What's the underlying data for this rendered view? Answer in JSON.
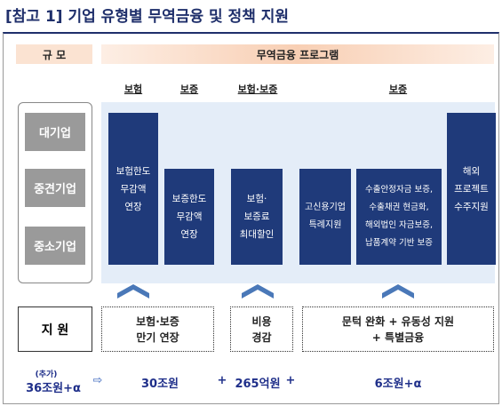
{
  "title": "[참고 1] 기업 유형별 무역금융 및 정책 지원",
  "header": {
    "scale": "규 모",
    "programs": "무역금융 프로그램"
  },
  "categories": [
    "보험",
    "보증",
    "보험·보증",
    "보증"
  ],
  "company_sizes": [
    "대기업",
    "중견기업",
    "중소기업"
  ],
  "programs": [
    {
      "lines": [
        "보험한도",
        "무감액",
        "연장"
      ]
    },
    {
      "lines": [
        "보증한도",
        "무감액",
        "연장"
      ]
    },
    {
      "lines": [
        "보험·",
        "보증료",
        "최대할인"
      ]
    },
    {
      "lines": [
        "고신용기업",
        "특례지원"
      ]
    },
    {
      "lines": [
        "수출안정자금 보증,",
        "수출채권 현금화,",
        "해외법인 자금보증,",
        "납품계약 기반 보증"
      ]
    },
    {
      "lines": [
        "해외",
        "프로젝트",
        "수주지원"
      ]
    }
  ],
  "support": {
    "label": "지 원",
    "items": [
      {
        "lines": [
          "보험·보증",
          "만기 연장"
        ]
      },
      {
        "lines": [
          "비용",
          "경감"
        ]
      },
      {
        "lines": [
          "문턱 완화 + 유동성 지원",
          "+ 특별금융"
        ]
      }
    ]
  },
  "totals": {
    "note": "(추가)",
    "first": "36조원+α",
    "arrow": "⇨",
    "items": [
      "30조원",
      "+",
      "265억원",
      "+",
      "6조원+α"
    ]
  }
}
